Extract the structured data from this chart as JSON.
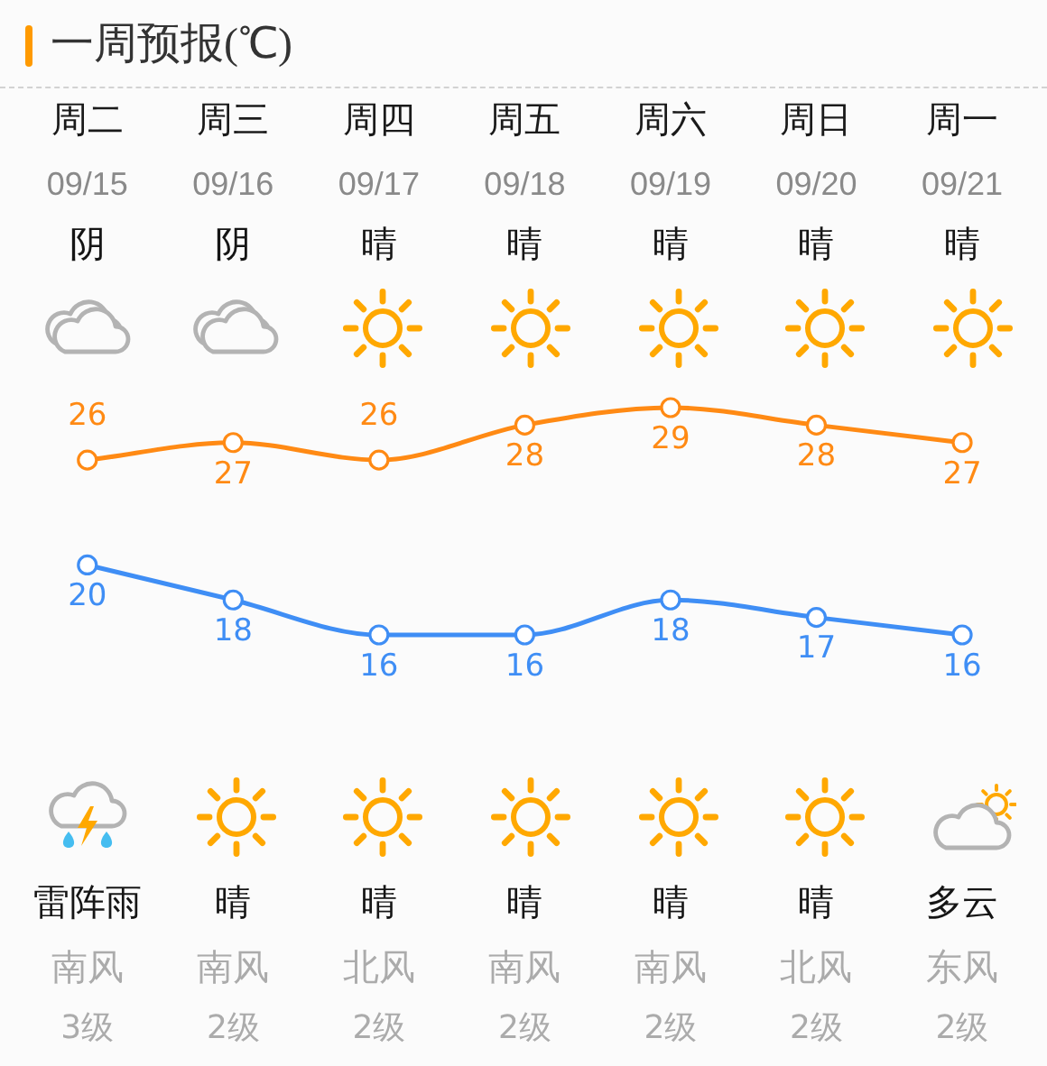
{
  "chart_data": {
    "type": "line",
    "title": "一周预报(℃)",
    "categories": [
      "周二",
      "周三",
      "周四",
      "周五",
      "周六",
      "周日",
      "周一"
    ],
    "series": [
      {
        "color": "#ff8a14",
        "values": [
          26,
          27,
          26,
          28,
          29,
          28,
          27
        ]
      },
      {
        "color": "#3f8ef5",
        "values": [
          20,
          18,
          16,
          16,
          18,
          17,
          16
        ]
      }
    ],
    "annotations": [
      "09/15",
      "09/16",
      "09/17",
      "09/18",
      "09/19",
      "09/20",
      "09/21",
      "阴",
      "阴",
      "晴",
      "晴",
      "晴",
      "晴",
      "晴",
      "雷阵雨",
      "晴",
      "晴",
      "晴",
      "晴",
      "晴",
      "多云",
      "南风",
      "南风",
      "北风",
      "南风",
      "南风",
      "北风",
      "东风",
      "3级",
      "2级",
      "2级",
      "2级",
      "2级",
      "2级",
      "2级"
    ],
    "data_labels": true,
    "marker": "circle",
    "tick_labels": "x"
  }
}
